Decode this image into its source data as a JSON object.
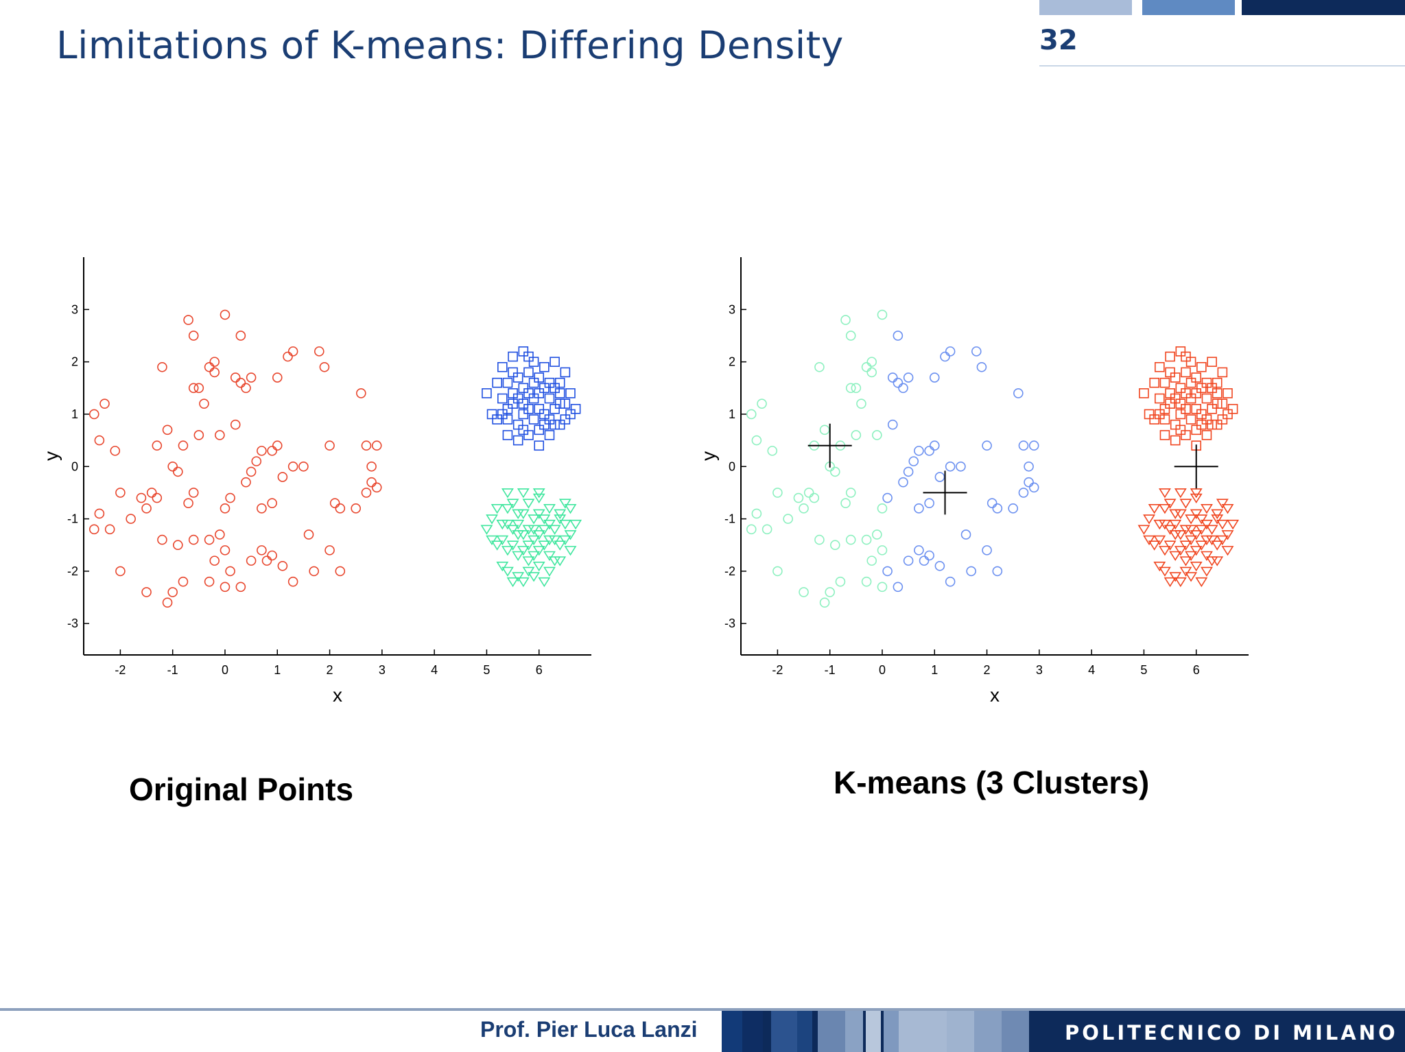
{
  "slide": {
    "title": "Limitations of K-means: Differing Density",
    "page_number": "32"
  },
  "captions": {
    "left": "Original Points",
    "right": "K-means (3 Clusters)"
  },
  "footer": {
    "author": "Prof. Pier Luca Lanzi",
    "institution": "POLITECNICO DI MILANO"
  },
  "colors": {
    "title": "#1a3d73",
    "red": "#e8452c",
    "blue": "#1f4fe0",
    "green": "#3fe69e",
    "light_green": "#8cf0bf",
    "light_blue": "#6a8ff0",
    "orange_red": "#f0451f"
  },
  "chart_data": [
    {
      "type": "scatter",
      "xlabel": "x",
      "ylabel": "y",
      "xlim": [
        -2.7,
        7
      ],
      "ylim": [
        -3.6,
        4
      ],
      "xticks": [
        -2,
        -1,
        0,
        1,
        2,
        3,
        4,
        5,
        6
      ],
      "yticks": [
        -3,
        -2,
        -1,
        0,
        1,
        2,
        3
      ],
      "series": [
        {
          "marker": "circle",
          "color": "#e8452c",
          "points": [
            [
              -2.5,
              1.0
            ],
            [
              -2.4,
              0.5
            ],
            [
              -2.3,
              1.2
            ],
            [
              -2.1,
              0.3
            ],
            [
              -2.0,
              -0.5
            ],
            [
              -2.5,
              -1.2
            ],
            [
              -2.4,
              -0.9
            ],
            [
              -2.2,
              -1.2
            ],
            [
              -2.0,
              -2.0
            ],
            [
              -1.8,
              -1.0
            ],
            [
              -1.6,
              -0.6
            ],
            [
              -1.5,
              -0.8
            ],
            [
              -1.4,
              -0.5
            ],
            [
              -1.3,
              -0.6
            ],
            [
              -1.2,
              1.9
            ],
            [
              -1.1,
              0.7
            ],
            [
              -1.0,
              0.0
            ],
            [
              -0.9,
              -0.1
            ],
            [
              -0.8,
              0.4
            ],
            [
              -0.7,
              -0.7
            ],
            [
              -0.6,
              -0.5
            ],
            [
              -0.5,
              1.5
            ],
            [
              -0.4,
              1.2
            ],
            [
              -0.3,
              1.9
            ],
            [
              -0.2,
              2.0
            ],
            [
              -0.1,
              0.6
            ],
            [
              0.0,
              -0.8
            ],
            [
              0.1,
              -0.6
            ],
            [
              -0.7,
              2.8
            ],
            [
              -0.6,
              2.5
            ],
            [
              0.0,
              2.9
            ],
            [
              0.3,
              2.5
            ],
            [
              0.2,
              1.7
            ],
            [
              0.3,
              1.6
            ],
            [
              0.4,
              1.5
            ],
            [
              0.5,
              -0.1
            ],
            [
              0.4,
              -0.3
            ],
            [
              0.6,
              0.1
            ],
            [
              0.7,
              -0.8
            ],
            [
              0.9,
              0.3
            ],
            [
              1.0,
              0.4
            ],
            [
              1.1,
              -0.2
            ],
            [
              0.9,
              -0.7
            ],
            [
              1.2,
              2.1
            ],
            [
              1.0,
              1.7
            ],
            [
              1.3,
              0.0
            ],
            [
              1.8,
              2.2
            ],
            [
              1.9,
              1.9
            ],
            [
              2.0,
              0.4
            ],
            [
              2.1,
              -0.7
            ],
            [
              2.2,
              -0.8
            ],
            [
              2.5,
              -0.8
            ],
            [
              2.7,
              0.4
            ],
            [
              2.8,
              0.0
            ],
            [
              2.8,
              -0.3
            ],
            [
              2.9,
              0.4
            ],
            [
              2.9,
              -0.4
            ],
            [
              2.7,
              -0.5
            ],
            [
              2.6,
              1.4
            ],
            [
              -1.2,
              -1.4
            ],
            [
              -0.9,
              -1.5
            ],
            [
              -0.6,
              -1.4
            ],
            [
              -0.3,
              -1.4
            ],
            [
              -0.1,
              -1.3
            ],
            [
              0.0,
              -1.6
            ],
            [
              0.1,
              -2.0
            ],
            [
              -0.2,
              -1.8
            ],
            [
              -0.3,
              -2.2
            ],
            [
              0.0,
              -2.3
            ],
            [
              0.3,
              -2.3
            ],
            [
              0.5,
              -1.8
            ],
            [
              0.7,
              -1.6
            ],
            [
              0.8,
              -1.8
            ],
            [
              0.9,
              -1.7
            ],
            [
              1.1,
              -1.9
            ],
            [
              1.3,
              -2.2
            ],
            [
              1.6,
              -1.3
            ],
            [
              1.7,
              -2.0
            ],
            [
              2.0,
              -1.6
            ],
            [
              2.2,
              -2.0
            ],
            [
              -1.0,
              -2.4
            ],
            [
              -0.8,
              -2.2
            ],
            [
              -1.5,
              -2.4
            ],
            [
              -1.1,
              -2.6
            ],
            [
              -0.5,
              0.6
            ],
            [
              -1.3,
              0.4
            ],
            [
              0.2,
              0.8
            ],
            [
              -0.6,
              1.5
            ],
            [
              0.5,
              1.7
            ],
            [
              -0.2,
              1.8
            ],
            [
              1.3,
              2.2
            ],
            [
              0.7,
              0.3
            ],
            [
              1.5,
              0.0
            ]
          ]
        },
        {
          "marker": "square",
          "color": "#1f4fe0",
          "points": [
            [
              5.0,
              1.4
            ],
            [
              5.1,
              1.0
            ],
            [
              5.2,
              0.9
            ],
            [
              5.3,
              1.3
            ],
            [
              5.4,
              1.6
            ],
            [
              5.5,
              1.2
            ],
            [
              5.6,
              0.8
            ],
            [
              5.7,
              1.5
            ],
            [
              5.8,
              1.1
            ],
            [
              5.9,
              0.9
            ],
            [
              6.0,
              1.4
            ],
            [
              6.1,
              1.0
            ],
            [
              6.2,
              1.3
            ],
            [
              6.3,
              0.8
            ],
            [
              6.4,
              1.6
            ],
            [
              6.5,
              1.2
            ],
            [
              6.6,
              1.4
            ],
            [
              6.7,
              1.1
            ],
            [
              5.3,
              1.9
            ],
            [
              5.5,
              2.1
            ],
            [
              5.7,
              2.2
            ],
            [
              5.9,
              2.0
            ],
            [
              6.1,
              1.9
            ],
            [
              6.3,
              2.0
            ],
            [
              6.5,
              1.8
            ],
            [
              5.4,
              0.6
            ],
            [
              5.6,
              0.5
            ],
            [
              5.8,
              0.6
            ],
            [
              6.0,
              0.7
            ],
            [
              6.2,
              0.6
            ],
            [
              6.4,
              0.8
            ],
            [
              5.2,
              1.6
            ],
            [
              5.4,
              1.1
            ],
            [
              5.6,
              1.7
            ],
            [
              5.8,
              1.8
            ],
            [
              6.0,
              1.7
            ],
            [
              6.2,
              1.6
            ],
            [
              6.4,
              1.4
            ],
            [
              6.6,
              1.0
            ],
            [
              5.5,
              1.4
            ],
            [
              5.7,
              1.0
            ],
            [
              5.9,
              1.3
            ],
            [
              6.1,
              1.5
            ],
            [
              6.3,
              1.1
            ],
            [
              5.4,
              0.9
            ],
            [
              5.6,
              1.3
            ],
            [
              5.8,
              1.4
            ],
            [
              6.0,
              1.1
            ],
            [
              6.2,
              0.9
            ],
            [
              6.4,
              1.2
            ],
            [
              5.3,
              1.0
            ],
            [
              6.5,
              0.9
            ],
            [
              5.7,
              0.7
            ],
            [
              6.1,
              0.8
            ],
            [
              6.3,
              1.5
            ],
            [
              5.9,
              1.6
            ],
            [
              5.5,
              1.8
            ],
            [
              5.8,
              2.1
            ],
            [
              6.0,
              0.4
            ],
            [
              5.7,
              1.2
            ]
          ]
        },
        {
          "marker": "triangle-down",
          "color": "#3fe69e",
          "points": [
            [
              5.0,
              -1.2
            ],
            [
              5.1,
              -1.0
            ],
            [
              5.2,
              -0.8
            ],
            [
              5.3,
              -1.4
            ],
            [
              5.4,
              -1.1
            ],
            [
              5.5,
              -0.7
            ],
            [
              5.6,
              -1.3
            ],
            [
              5.7,
              -0.9
            ],
            [
              5.8,
              -1.5
            ],
            [
              5.9,
              -1.0
            ],
            [
              6.0,
              -0.6
            ],
            [
              6.1,
              -1.2
            ],
            [
              6.2,
              -0.8
            ],
            [
              6.3,
              -1.4
            ],
            [
              6.4,
              -1.0
            ],
            [
              6.5,
              -0.7
            ],
            [
              6.6,
              -1.3
            ],
            [
              6.7,
              -1.1
            ],
            [
              5.3,
              -1.9
            ],
            [
              5.4,
              -2.0
            ],
            [
              5.6,
              -2.1
            ],
            [
              5.8,
              -2.0
            ],
            [
              6.0,
              -1.9
            ],
            [
              6.2,
              -2.0
            ],
            [
              6.4,
              -1.8
            ],
            [
              5.5,
              -2.2
            ],
            [
              5.7,
              -2.2
            ],
            [
              5.9,
              -2.1
            ],
            [
              6.1,
              -2.2
            ],
            [
              5.4,
              -1.6
            ],
            [
              5.6,
              -1.7
            ],
            [
              5.8,
              -1.8
            ],
            [
              6.0,
              -1.6
            ],
            [
              6.2,
              -1.7
            ],
            [
              6.4,
              -1.5
            ],
            [
              6.6,
              -1.6
            ],
            [
              5.2,
              -1.5
            ],
            [
              5.5,
              -1.5
            ],
            [
              5.7,
              -1.6
            ],
            [
              5.9,
              -1.4
            ],
            [
              6.1,
              -1.5
            ],
            [
              6.3,
              -1.8
            ],
            [
              6.5,
              -1.4
            ],
            [
              5.4,
              -0.8
            ],
            [
              5.6,
              -0.9
            ],
            [
              5.8,
              -0.7
            ],
            [
              6.0,
              -0.9
            ],
            [
              6.2,
              -1.1
            ],
            [
              6.4,
              -0.9
            ],
            [
              5.3,
              -1.1
            ],
            [
              5.5,
              -1.2
            ],
            [
              5.7,
              -1.3
            ],
            [
              5.9,
              -1.2
            ],
            [
              6.1,
              -1.0
            ],
            [
              6.3,
              -1.2
            ],
            [
              6.5,
              -1.1
            ],
            [
              5.1,
              -1.4
            ],
            [
              6.6,
              -0.8
            ],
            [
              5.8,
              -1.2
            ],
            [
              6.0,
              -1.3
            ],
            [
              5.6,
              -1.1
            ],
            [
              6.2,
              -1.4
            ],
            [
              5.9,
              -1.7
            ],
            [
              5.4,
              -0.5
            ],
            [
              6.0,
              -0.5
            ],
            [
              5.7,
              -0.5
            ]
          ]
        }
      ]
    },
    {
      "type": "scatter",
      "xlabel": "x",
      "ylabel": "y",
      "xlim": [
        -2.7,
        7
      ],
      "ylim": [
        -3.6,
        4
      ],
      "xticks": [
        -2,
        -1,
        0,
        1,
        2,
        3,
        4,
        5,
        6
      ],
      "yticks": [
        -3,
        -2,
        -1,
        0,
        1,
        2,
        3
      ],
      "centroids": [
        [
          -1.0,
          0.4
        ],
        [
          1.2,
          -0.5
        ],
        [
          6.0,
          0.0
        ]
      ],
      "split_x": 0.05,
      "series": [
        {
          "marker": "circle",
          "color": "#8cf0bf",
          "source_cluster": 0,
          "condition": "x<split"
        },
        {
          "marker": "circle",
          "color": "#6a8ff0",
          "source_cluster": 0,
          "condition": "x>=split"
        },
        {
          "marker": "square",
          "color": "#f0451f",
          "source_cluster": 1
        },
        {
          "marker": "triangle-down",
          "color": "#f0451f",
          "source_cluster": 2
        }
      ]
    }
  ]
}
